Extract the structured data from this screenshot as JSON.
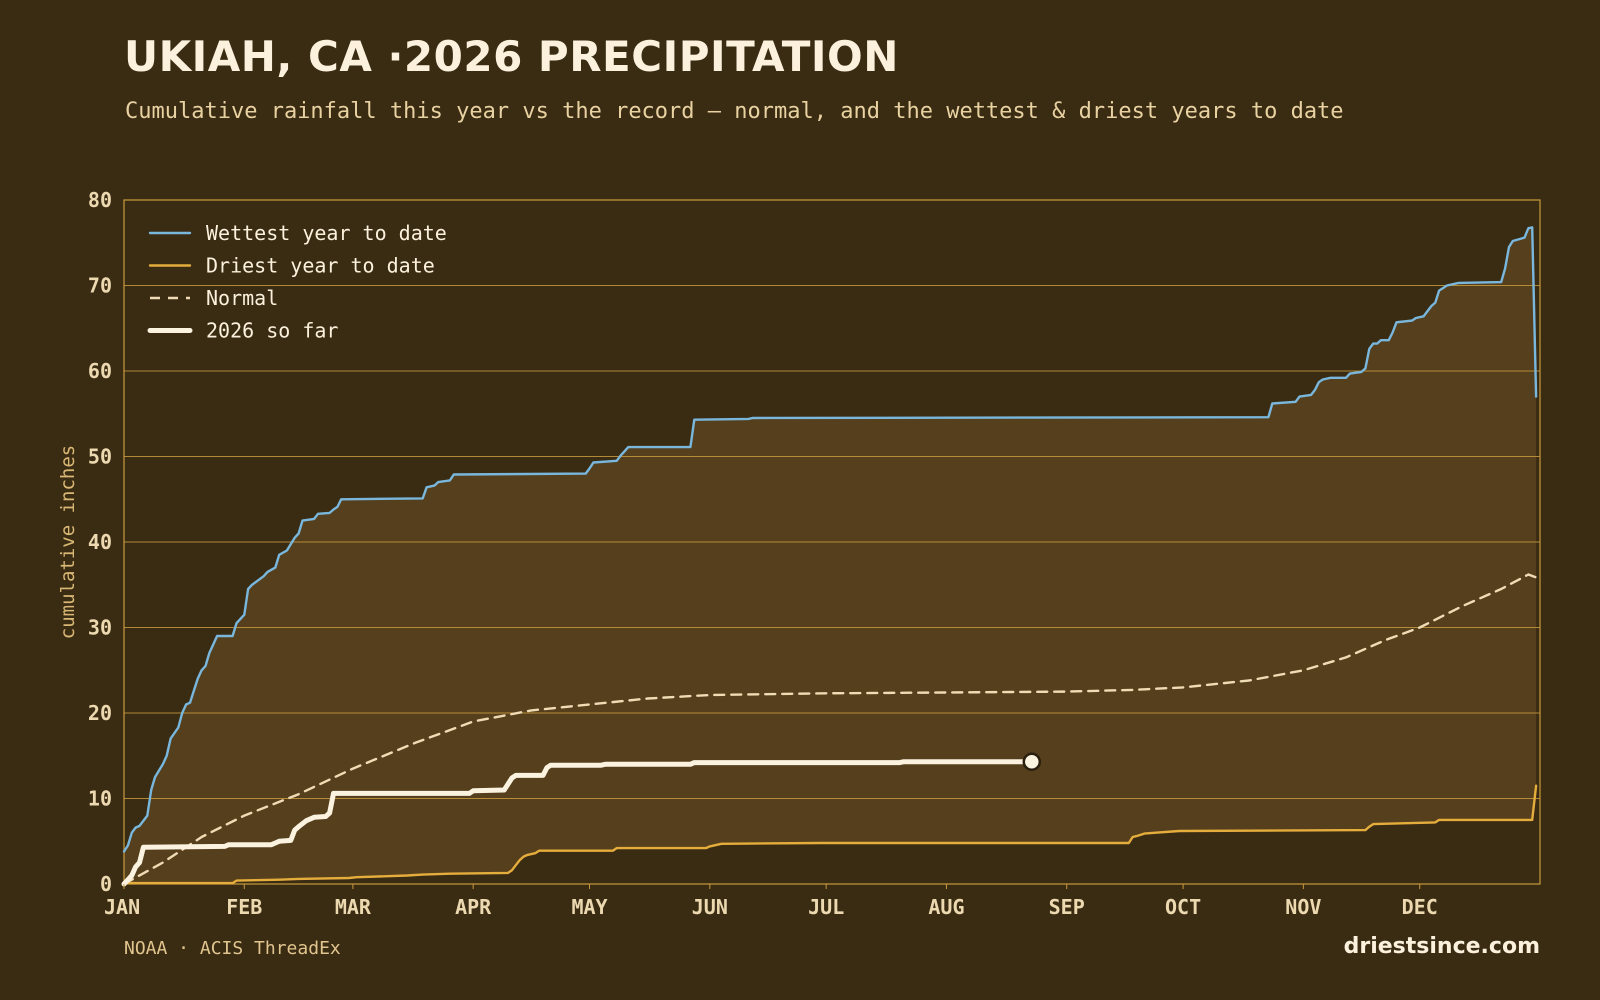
{
  "title": "UKIAH, CA ·2026 PRECIPITATION",
  "subtitle": "Cumulative rainfall this year vs the record — normal, and the wettest & driest years to date",
  "source": "NOAA · ACIS ThreadEx",
  "site": "driestsince.com",
  "colors": {
    "background": "#3a2b13",
    "band": "#553f1d",
    "wettest": "#79b7dd",
    "driest": "#e5ad3c",
    "normal": "#efdcb4",
    "current": "#fbf3e0",
    "grid": "#c89a3e"
  },
  "chart_data": {
    "type": "line",
    "title": "UKIAH, CA ·2026 PRECIPITATION",
    "xlabel": "",
    "ylabel": "cumulative inches",
    "xlim": [
      0,
      365
    ],
    "ylim": [
      0,
      80
    ],
    "yticks": [
      "0",
      "10",
      "20",
      "30",
      "40",
      "50",
      "60",
      "70",
      "80"
    ],
    "xticks": [
      {
        "label": "JAN",
        "day": 0
      },
      {
        "label": "FEB",
        "day": 31
      },
      {
        "label": "MAR",
        "day": 59
      },
      {
        "label": "APR",
        "day": 90
      },
      {
        "label": "MAY",
        "day": 120
      },
      {
        "label": "JUN",
        "day": 151
      },
      {
        "label": "JUL",
        "day": 181
      },
      {
        "label": "AUG",
        "day": 212
      },
      {
        "label": "SEP",
        "day": 243
      },
      {
        "label": "OCT",
        "day": 273
      },
      {
        "label": "NOV",
        "day": 304
      },
      {
        "label": "DEC",
        "day": 334
      }
    ],
    "grid": true,
    "legend_position": "top-left",
    "series": [
      {
        "name": "Wettest year to date",
        "style": "solid",
        "points": [
          [
            0,
            3.8
          ],
          [
            1,
            4.5
          ],
          [
            2,
            6
          ],
          [
            3,
            6.6
          ],
          [
            4,
            6.8
          ],
          [
            6,
            8
          ],
          [
            7,
            11
          ],
          [
            8,
            12.5
          ],
          [
            10,
            14
          ],
          [
            11,
            15
          ],
          [
            12,
            17
          ],
          [
            14,
            18.3
          ],
          [
            15,
            20
          ],
          [
            16,
            21
          ],
          [
            17,
            21.2
          ],
          [
            19,
            24
          ],
          [
            20,
            25
          ],
          [
            21,
            25.5
          ],
          [
            22,
            27
          ],
          [
            24,
            29
          ],
          [
            28,
            29
          ],
          [
            29,
            30.5
          ],
          [
            31,
            31.5
          ],
          [
            32,
            34.5
          ],
          [
            33,
            35
          ],
          [
            36,
            36
          ],
          [
            37,
            36.5
          ],
          [
            39,
            37
          ],
          [
            40,
            38.5
          ],
          [
            42,
            39
          ],
          [
            44,
            40.5
          ],
          [
            45,
            41
          ],
          [
            46,
            42.5
          ],
          [
            49,
            42.7
          ],
          [
            50,
            43.3
          ],
          [
            53,
            43.4
          ],
          [
            54,
            43.8
          ],
          [
            55,
            44.1
          ],
          [
            56,
            45
          ],
          [
            77,
            45.1
          ],
          [
            78,
            46.4
          ],
          [
            80,
            46.6
          ],
          [
            81,
            47
          ],
          [
            84,
            47.2
          ],
          [
            85,
            47.9
          ],
          [
            119,
            48
          ],
          [
            120,
            48.6
          ],
          [
            121,
            49.3
          ],
          [
            127,
            49.5
          ],
          [
            128,
            50.1
          ],
          [
            129,
            50.6
          ],
          [
            130,
            51.1
          ],
          [
            146,
            51.1
          ],
          [
            147,
            54.3
          ],
          [
            161,
            54.4
          ],
          [
            162,
            54.5
          ],
          [
            295,
            54.6
          ],
          [
            296,
            56.2
          ],
          [
            302,
            56.4
          ],
          [
            303,
            57
          ],
          [
            306,
            57.2
          ],
          [
            307,
            57.8
          ],
          [
            308,
            58.7
          ],
          [
            309,
            59
          ],
          [
            311,
            59.2
          ],
          [
            315,
            59.2
          ],
          [
            316,
            59.7
          ],
          [
            319,
            59.9
          ],
          [
            320,
            60.3
          ],
          [
            321,
            62.6
          ],
          [
            322,
            63.2
          ],
          [
            323,
            63.2
          ],
          [
            324,
            63.6
          ],
          [
            326,
            63.6
          ],
          [
            327,
            64.5
          ],
          [
            328,
            65.7
          ],
          [
            332,
            65.9
          ],
          [
            333,
            66.2
          ],
          [
            335,
            66.4
          ],
          [
            336,
            67
          ],
          [
            337,
            67.6
          ],
          [
            338,
            68
          ],
          [
            339,
            69.4
          ],
          [
            340,
            69.7
          ],
          [
            341,
            70
          ],
          [
            344,
            70.3
          ],
          [
            355,
            70.4
          ],
          [
            356,
            72
          ],
          [
            357,
            74.5
          ],
          [
            358,
            75.2
          ],
          [
            361,
            75.6
          ],
          [
            362,
            76.7
          ],
          [
            363,
            76.8
          ],
          [
            364,
            57
          ]
        ]
      },
      {
        "name": "Driest year to date",
        "style": "solid",
        "points": [
          [
            0,
            0.1
          ],
          [
            28,
            0.1
          ],
          [
            29,
            0.4
          ],
          [
            40,
            0.5
          ],
          [
            45,
            0.6
          ],
          [
            58,
            0.7
          ],
          [
            60,
            0.8
          ],
          [
            67,
            0.9
          ],
          [
            73,
            1
          ],
          [
            77,
            1.1
          ],
          [
            84,
            1.2
          ],
          [
            99,
            1.3
          ],
          [
            100,
            1.6
          ],
          [
            101,
            2.2
          ],
          [
            102,
            2.8
          ],
          [
            103,
            3.2
          ],
          [
            104,
            3.4
          ],
          [
            106,
            3.6
          ],
          [
            107,
            3.9
          ],
          [
            126,
            3.9
          ],
          [
            127,
            4.2
          ],
          [
            150,
            4.2
          ],
          [
            151,
            4.4
          ],
          [
            154,
            4.7
          ],
          [
            180,
            4.8
          ],
          [
            259,
            4.8
          ],
          [
            260,
            5.5
          ],
          [
            261,
            5.6
          ],
          [
            263,
            5.9
          ],
          [
            266,
            6
          ],
          [
            272,
            6.2
          ],
          [
            320,
            6.3
          ],
          [
            321,
            6.7
          ],
          [
            322,
            7.0
          ],
          [
            338,
            7.2
          ],
          [
            339,
            7.5
          ],
          [
            363,
            7.5
          ],
          [
            364,
            11.5
          ]
        ]
      },
      {
        "name": "Normal",
        "style": "dashed",
        "points": [
          [
            0,
            0
          ],
          [
            10,
            2.5
          ],
          [
            20,
            5.5
          ],
          [
            31,
            8
          ],
          [
            45,
            10.5
          ],
          [
            59,
            13.5
          ],
          [
            75,
            16.5
          ],
          [
            90,
            19
          ],
          [
            105,
            20.3
          ],
          [
            120,
            21
          ],
          [
            135,
            21.7
          ],
          [
            151,
            22.1
          ],
          [
            181,
            22.3
          ],
          [
            212,
            22.4
          ],
          [
            243,
            22.5
          ],
          [
            260,
            22.7
          ],
          [
            273,
            23
          ],
          [
            290,
            23.8
          ],
          [
            304,
            25
          ],
          [
            315,
            26.5
          ],
          [
            325,
            28.5
          ],
          [
            334,
            30
          ],
          [
            345,
            32.5
          ],
          [
            355,
            34.5
          ],
          [
            362,
            36.2
          ],
          [
            365,
            35.7
          ]
        ]
      },
      {
        "name": "2026 so far",
        "style": "bold",
        "points": [
          [
            0,
            0
          ],
          [
            2,
            1
          ],
          [
            3,
            2
          ],
          [
            4,
            2.5
          ],
          [
            5,
            4.3
          ],
          [
            26,
            4.4
          ],
          [
            27,
            4.6
          ],
          [
            38,
            4.6
          ],
          [
            39,
            4.8
          ],
          [
            40,
            5
          ],
          [
            43,
            5.1
          ],
          [
            44,
            6.3
          ],
          [
            45,
            6.7
          ],
          [
            47,
            7.4
          ],
          [
            49,
            7.8
          ],
          [
            52,
            7.9
          ],
          [
            53,
            8.3
          ],
          [
            54,
            10.6
          ],
          [
            89,
            10.6
          ],
          [
            90,
            10.9
          ],
          [
            98,
            11
          ],
          [
            100,
            12.4
          ],
          [
            101,
            12.7
          ],
          [
            108,
            12.7
          ],
          [
            109,
            13.6
          ],
          [
            110,
            13.9
          ],
          [
            123,
            13.9
          ],
          [
            124,
            14
          ],
          [
            146,
            14
          ],
          [
            147,
            14.2
          ],
          [
            200,
            14.2
          ],
          [
            201,
            14.3
          ],
          [
            234,
            14.3
          ]
        ],
        "last_value": 14.3
      }
    ]
  }
}
